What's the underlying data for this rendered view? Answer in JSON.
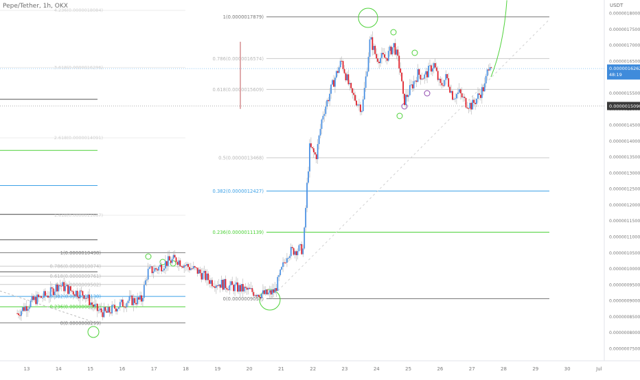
{
  "header": {
    "symbol": "Pepe/Tether, 1h, OKX",
    "currency": "USDT"
  },
  "chart_data": {
    "type": "candlestick",
    "y_axis_ticks": [
      "0.0000018000",
      "0.0000017500",
      "0.0000017000",
      "0.0000016500",
      "0.0000016000",
      "0.0000015500",
      "0.0000015000",
      "0.0000014500",
      "0.0000014000",
      "0.0000013500",
      "0.0000013000",
      "0.0000012500",
      "0.0000012000",
      "0.0000011500",
      "0.0000011000",
      "0.0000010500",
      "0.0000010000",
      "0.0000009500",
      "0.0000009000",
      "0.0000008500",
      "0.0000008000",
      "0.0000007500"
    ],
    "ylim": [
      7.3e-07,
      1.84e-06
    ],
    "x_axis_ticks": [
      "13",
      "14",
      "15",
      "16",
      "17",
      "18",
      "19",
      "20",
      "21",
      "22",
      "23",
      "24",
      "25",
      "26",
      "27",
      "28",
      "29",
      "30",
      "Jul"
    ],
    "price_badge": {
      "price": "0.0000016262",
      "countdown": "48:19"
    },
    "level_badge": {
      "price": "0.0000015090"
    },
    "fib_big": [
      {
        "label": "1(0.0000017879)",
        "value": 1.7879e-06,
        "color": "#787878"
      },
      {
        "label": "0.786(0.0000016574)",
        "value": 1.6574e-06,
        "color": "#c9c9c9"
      },
      {
        "label": "0.618(0.0000015609)",
        "value": 1.5609e-06,
        "color": "#c9c9c9"
      },
      {
        "label": "0.5(0.0000013468)",
        "value": 1.3468e-06,
        "color": "#c9c9c9"
      },
      {
        "label": "0.382(0.0000012427)",
        "value": 1.2427e-06,
        "color": "#3ba0e6"
      },
      {
        "label": "0.236(0.0000011139)",
        "value": 1.1139e-06,
        "color": "#4cd137"
      },
      {
        "label": "0(0.0000009057)",
        "value": 9.057e-07,
        "color": "#787878"
      }
    ],
    "fib_ext_faded": [
      {
        "label": "4.236(0.0000018084)",
        "value": 1.8084e-06
      },
      {
        "label": "3.618(0.0000016296)",
        "value": 1.6296e-06
      },
      {
        "label": "2.618(0.0000014091)",
        "value": 1.4091e-06
      },
      {
        "label": "1.618(0.0000011667)",
        "value": 1.1667e-06
      }
    ],
    "fib_small": [
      {
        "label": "1(0.0000010498)",
        "value": 1.0498e-06,
        "color": "#787878"
      },
      {
        "label": "0.786(0.0000010074)",
        "value": 1.0074e-06,
        "color": "#c9c9c9"
      },
      {
        "label": "0.618(0.0000009761)",
        "value": 9.761e-07,
        "color": "#c9c9c9"
      },
      {
        "label": "0.5(0.0000009502)",
        "value": 9.502e-07,
        "color": "#c9c9c9"
      },
      {
        "label": "0.382(0.0000009130)",
        "value": 9.13e-07,
        "color": "#3ba0e6"
      },
      {
        "label": "0.236(0.0000008805)",
        "value": 8.805e-07,
        "color": "#4cd137"
      },
      {
        "label": "0(0.0000008299)",
        "value": 8.299e-07,
        "color": "#787878"
      }
    ],
    "left_lines": [
      {
        "value": 1.53e-06,
        "color": "#555555"
      },
      {
        "value": 1.37e-06,
        "color": "#4cd137"
      },
      {
        "value": 1.26e-06,
        "color": "#3ba0e6"
      },
      {
        "value": 1.17e-06,
        "color": "#555555"
      },
      {
        "value": 1.09e-06,
        "color": "#555555"
      },
      {
        "value": 9.9e-07,
        "color": "#555555"
      }
    ],
    "price_path": [
      [
        12.7,
        8.6e-07
      ],
      [
        13.2,
        9e-07
      ],
      [
        13.7,
        9.2e-07
      ],
      [
        14.0,
        9.5e-07
      ],
      [
        14.4,
        9.3e-07
      ],
      [
        14.8,
        9.2e-07
      ],
      [
        15.2,
        8.7e-07
      ],
      [
        15.5,
        8.6e-07
      ],
      [
        15.8,
        8.8e-07
      ],
      [
        16.2,
        9e-07
      ],
      [
        16.6,
        9e-07
      ],
      [
        16.8,
        9.9e-07
      ],
      [
        17.1,
        1e-06
      ],
      [
        17.4,
        1.02e-06
      ],
      [
        17.7,
        1.03e-06
      ],
      [
        18.0,
        1.01e-06
      ],
      [
        18.4,
        9.9e-07
      ],
      [
        18.8,
        9.6e-07
      ],
      [
        19.2,
        9.5e-07
      ],
      [
        19.6,
        9.4e-07
      ],
      [
        20.0,
        9.3e-07
      ],
      [
        20.4,
        9.2e-07
      ],
      [
        20.6,
        9.2e-07
      ],
      [
        20.8,
        9.3e-07
      ],
      [
        21.0,
        9.9e-07
      ],
      [
        21.2,
        1.05e-06
      ],
      [
        21.5,
        1.06e-06
      ],
      [
        21.7,
        1.06e-06
      ],
      [
        21.8,
        1.24e-06
      ],
      [
        21.9,
        1.38e-06
      ],
      [
        22.1,
        1.35e-06
      ],
      [
        22.3,
        1.48e-06
      ],
      [
        22.5,
        1.54e-06
      ],
      [
        22.7,
        1.6e-06
      ],
      [
        22.9,
        1.65e-06
      ],
      [
        23.2,
        1.55e-06
      ],
      [
        23.4,
        1.52e-06
      ],
      [
        23.55,
        1.5e-06
      ],
      [
        23.7,
        1.63e-06
      ],
      [
        23.8,
        1.72e-06
      ],
      [
        24.0,
        1.66e-06
      ],
      [
        24.3,
        1.66e-06
      ],
      [
        24.55,
        1.7e-06
      ],
      [
        24.75,
        1.62e-06
      ],
      [
        24.85,
        1.52e-06
      ],
      [
        25.0,
        1.55e-06
      ],
      [
        25.3,
        1.61e-06
      ],
      [
        25.5,
        1.6e-06
      ],
      [
        25.8,
        1.64e-06
      ],
      [
        26.0,
        1.57e-06
      ],
      [
        26.2,
        1.6e-06
      ],
      [
        26.4,
        1.54e-06
      ],
      [
        26.6,
        1.55e-06
      ],
      [
        26.8,
        1.52e-06
      ],
      [
        27.0,
        1.51e-06
      ],
      [
        27.2,
        1.54e-06
      ],
      [
        27.4,
        1.57e-06
      ],
      [
        27.55,
        1.65e-06
      ],
      [
        27.65,
        1.63e-06
      ]
    ]
  }
}
